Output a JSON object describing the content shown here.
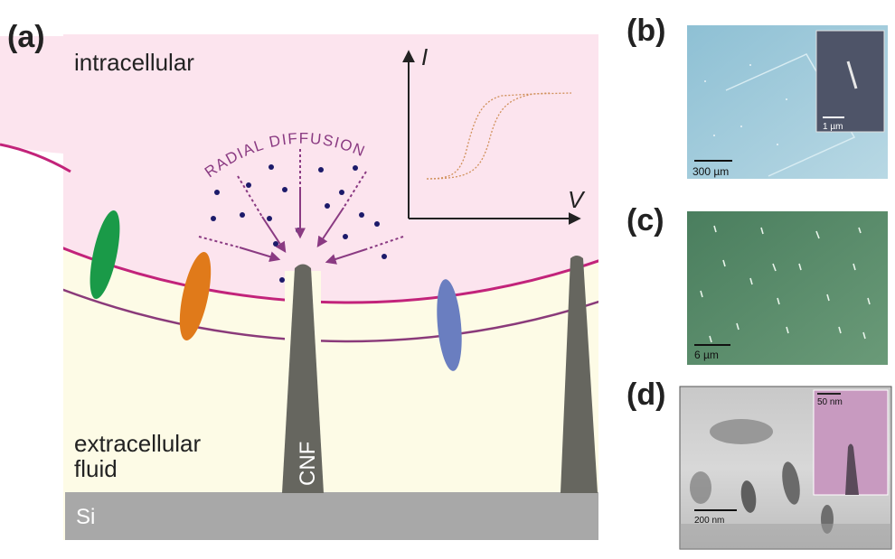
{
  "panels": {
    "a": {
      "label": "(a)",
      "intracellular": "intracellular",
      "radial_diffusion": "RADIAL DIFFUSION",
      "extracellular_line1": "extracellular",
      "extracellular_line2": "fluid",
      "cnf": "CNF",
      "substrate": "Si",
      "axis_y": "I",
      "axis_x": "V"
    },
    "b": {
      "label": "(b)",
      "scale": "300 µm",
      "inset_scale": "1 µm"
    },
    "c": {
      "label": "(c)",
      "scale": "6 µm"
    },
    "d": {
      "label": "(d)",
      "scale": "200 nm",
      "inset_scale": "50 nm"
    }
  },
  "colors": {
    "cytoplasm": "#fce4ee",
    "extracellular": "#fdfbe6",
    "membrane_outer": "#c2237a",
    "membrane_inner": "#8a3a7a",
    "cnf": "#66665f",
    "substrate": "#a8a8a8",
    "arrow": "#8a3a82",
    "molecule": "#1c1a6a",
    "protein_green": "#1a9a48",
    "protein_orange": "#e07a1a",
    "protein_blue": "#6a7ec0",
    "iv_curve": "#d0905a"
  }
}
